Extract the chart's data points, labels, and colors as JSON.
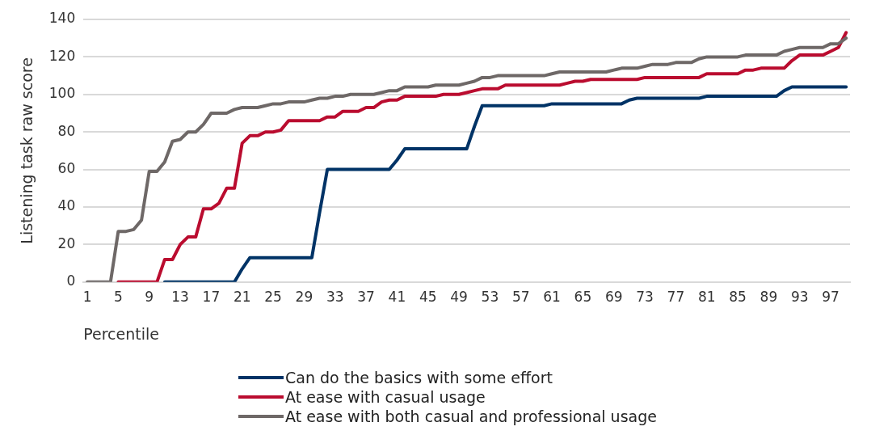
{
  "chart_data": {
    "type": "line",
    "xlabel": "Percentile",
    "ylabel": "Listening task raw score",
    "categories": [
      "1",
      null,
      null,
      null,
      "5",
      null,
      null,
      null,
      "9",
      null,
      null,
      null,
      "13",
      null,
      null,
      null,
      "17",
      null,
      null,
      null,
      "21",
      null,
      null,
      null,
      "25",
      null,
      null,
      null,
      "29",
      null,
      null,
      null,
      "33",
      null,
      null,
      null,
      "37",
      null,
      null,
      null,
      "41",
      null,
      null,
      null,
      "45",
      null,
      null,
      null,
      "49",
      null,
      null,
      null,
      "53",
      null,
      null,
      null,
      "57",
      null,
      null,
      null,
      "61",
      null,
      null,
      null,
      "65",
      null,
      null,
      null,
      "69",
      null,
      null,
      null,
      "73",
      null,
      null,
      null,
      "77",
      null,
      null,
      null,
      "81",
      null,
      null,
      null,
      "85",
      null,
      null,
      null,
      "89",
      null,
      null,
      null,
      "93",
      null,
      null,
      null,
      "97",
      null,
      null
    ],
    "series": [
      {
        "name": "Can do the basics with some effort",
        "color": "#003366",
        "values": [
          null,
          null,
          null,
          null,
          null,
          null,
          null,
          null,
          null,
          null,
          0,
          0,
          0,
          0,
          0,
          0,
          0,
          0,
          0,
          0,
          7,
          13,
          13,
          13,
          13,
          13,
          13,
          13,
          13,
          13,
          37,
          60,
          60,
          60,
          60,
          60,
          60,
          60,
          60,
          60,
          65,
          71,
          71,
          71,
          71,
          71,
          71,
          71,
          71,
          71,
          83,
          94,
          94,
          94,
          94,
          94,
          94,
          94,
          94,
          94,
          95,
          95,
          95,
          95,
          95,
          95,
          95,
          95,
          95,
          95,
          97,
          98,
          98,
          98,
          98,
          98,
          98,
          98,
          98,
          98,
          99,
          99,
          99,
          99,
          99,
          99,
          99,
          99,
          99,
          99,
          102,
          104,
          104,
          104,
          104,
          104,
          104,
          104,
          104
        ]
      },
      {
        "name": "At ease with casual usage",
        "color": "#ba0c2f",
        "values": [
          null,
          null,
          null,
          null,
          0,
          0,
          0,
          0,
          0,
          0,
          12,
          12,
          20,
          24,
          24,
          39,
          39,
          42,
          50,
          50,
          74,
          78,
          78,
          80,
          80,
          81,
          86,
          86,
          86,
          86,
          86,
          88,
          88,
          91,
          91,
          91,
          93,
          93,
          96,
          97,
          97,
          99,
          99,
          99,
          99,
          99,
          100,
          100,
          100,
          101,
          102,
          103,
          103,
          103,
          105,
          105,
          105,
          105,
          105,
          105,
          105,
          105,
          106,
          107,
          107,
          108,
          108,
          108,
          108,
          108,
          108,
          108,
          109,
          109,
          109,
          109,
          109,
          109,
          109,
          109,
          111,
          111,
          111,
          111,
          111,
          113,
          113,
          114,
          114,
          114,
          114,
          118,
          121,
          121,
          121,
          121,
          123,
          125,
          133
        ]
      },
      {
        "name": "At ease with both casual and professional usage",
        "color": "#6e6867",
        "values": [
          0,
          0,
          0,
          0,
          27,
          27,
          28,
          33,
          59,
          59,
          64,
          75,
          76,
          80,
          80,
          84,
          90,
          90,
          90,
          92,
          93,
          93,
          93,
          94,
          95,
          95,
          96,
          96,
          96,
          97,
          98,
          98,
          99,
          99,
          100,
          100,
          100,
          100,
          101,
          102,
          102,
          104,
          104,
          104,
          104,
          105,
          105,
          105,
          105,
          106,
          107,
          109,
          109,
          110,
          110,
          110,
          110,
          110,
          110,
          110,
          111,
          112,
          112,
          112,
          112,
          112,
          112,
          112,
          113,
          114,
          114,
          114,
          115,
          116,
          116,
          116,
          117,
          117,
          117,
          119,
          120,
          120,
          120,
          120,
          120,
          121,
          121,
          121,
          121,
          121,
          123,
          124,
          125,
          125,
          125,
          125,
          127,
          127,
          130
        ]
      }
    ],
    "ylim": [
      0,
      140
    ],
    "yticks": [
      0,
      20,
      40,
      60,
      80,
      100,
      120,
      140
    ],
    "grid": "y",
    "legend": "bottom",
    "marker": "none",
    "line_style": "solid"
  }
}
